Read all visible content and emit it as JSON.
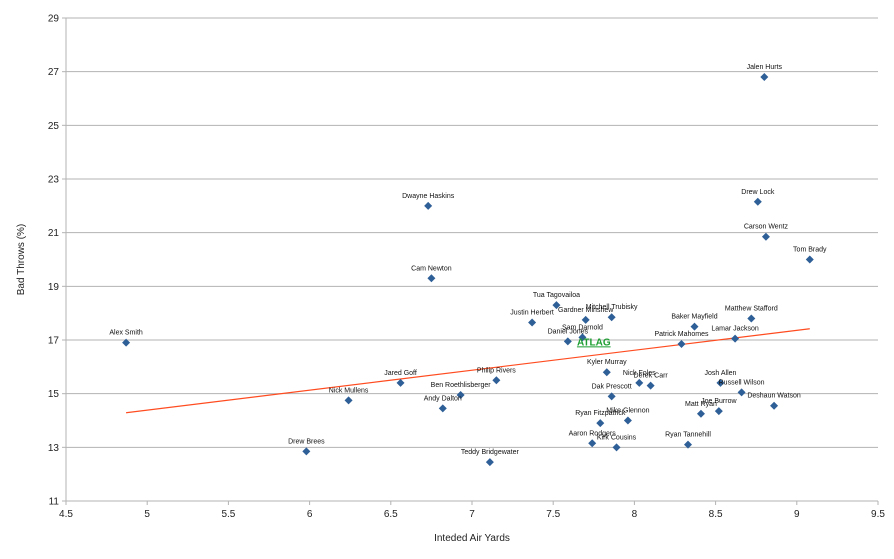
{
  "chart_data": {
    "type": "scatter",
    "xlabel": "Inteded Air Yards",
    "ylabel": "Bad Throws (%)",
    "xlim": [
      4.5,
      9.5
    ],
    "ylim": [
      11,
      29
    ],
    "x_ticks": [
      "4.5",
      "5",
      "5.5",
      "6",
      "6.5",
      "7",
      "7.5",
      "8",
      "8.5",
      "9",
      "9.5"
    ],
    "y_ticks": [
      "11",
      "13",
      "15",
      "17",
      "19",
      "21",
      "23",
      "25",
      "27",
      "29"
    ],
    "grid": "horizontal",
    "marker_color": "#2f5f97",
    "trendline_color": "#ff4b1f",
    "trendline": {
      "type": "linear",
      "x": [
        4.87,
        9.08
      ],
      "y": [
        14.29,
        17.42
      ]
    },
    "watermark": "ATLAG",
    "points": [
      {
        "label": "Jalen Hurts",
        "x": 8.8,
        "y": 26.8
      },
      {
        "label": "Dwayne Haskins",
        "x": 6.73,
        "y": 22.0
      },
      {
        "label": "Drew Lock",
        "x": 8.76,
        "y": 22.15
      },
      {
        "label": "Carson Wentz",
        "x": 8.81,
        "y": 20.85
      },
      {
        "label": "Tom Brady",
        "x": 9.08,
        "y": 20.0
      },
      {
        "label": "Cam Newton",
        "x": 6.75,
        "y": 19.3
      },
      {
        "label": "Tua Tagovailoa",
        "x": 7.52,
        "y": 18.3
      },
      {
        "label": "Gardner Minshew",
        "x": 7.7,
        "y": 17.75
      },
      {
        "label": "Mitchell Trubisky",
        "x": 7.86,
        "y": 17.85
      },
      {
        "label": "Justin Herbert",
        "x": 7.37,
        "y": 17.65
      },
      {
        "label": "Baker Mayfield",
        "x": 8.37,
        "y": 17.5
      },
      {
        "label": "Matthew Stafford",
        "x": 8.72,
        "y": 17.8
      },
      {
        "label": "Sam Darnold",
        "x": 7.68,
        "y": 17.1
      },
      {
        "label": "Daniel Jones",
        "x": 7.59,
        "y": 16.95
      },
      {
        "label": "Lamar Jackson",
        "x": 8.62,
        "y": 17.05
      },
      {
        "label": "Patrick Mahomes",
        "x": 8.29,
        "y": 16.85
      },
      {
        "label": "Alex Smith",
        "x": 4.87,
        "y": 16.9
      },
      {
        "label": "Kyler Murray",
        "x": 7.83,
        "y": 15.8
      },
      {
        "label": "Jared Goff",
        "x": 6.56,
        "y": 15.4
      },
      {
        "label": "Philip Rivers",
        "x": 7.15,
        "y": 15.5
      },
      {
        "label": "Nick Foles",
        "x": 8.03,
        "y": 15.4
      },
      {
        "label": "Derek Carr",
        "x": 8.1,
        "y": 15.3
      },
      {
        "label": "Josh Allen",
        "x": 8.53,
        "y": 15.4
      },
      {
        "label": "Ben Roethlisberger",
        "x": 6.93,
        "y": 14.95
      },
      {
        "label": "Dak Prescott",
        "x": 7.86,
        "y": 14.9
      },
      {
        "label": "Russell Wilson",
        "x": 8.66,
        "y": 15.05
      },
      {
        "label": "Nick Mullens",
        "x": 6.24,
        "y": 14.75
      },
      {
        "label": "Andy Dalton",
        "x": 6.82,
        "y": 14.45
      },
      {
        "label": "Joe Burrow",
        "x": 8.52,
        "y": 14.35
      },
      {
        "label": "Deshaun Watson",
        "x": 8.86,
        "y": 14.55
      },
      {
        "label": "Matt Ryan",
        "x": 8.41,
        "y": 14.25
      },
      {
        "label": "Mike Glennon",
        "x": 7.96,
        "y": 14.0
      },
      {
        "label": "Ryan Fitzpatrick",
        "x": 7.79,
        "y": 13.9
      },
      {
        "label": "Aaron Rodgers",
        "x": 7.74,
        "y": 13.15
      },
      {
        "label": "Kirk Cousins",
        "x": 7.89,
        "y": 13.0
      },
      {
        "label": "Ryan Tannehill",
        "x": 8.33,
        "y": 13.1
      },
      {
        "label": "Drew Brees",
        "x": 5.98,
        "y": 12.85
      },
      {
        "label": "Teddy Bridgewater",
        "x": 7.11,
        "y": 12.45
      }
    ]
  }
}
